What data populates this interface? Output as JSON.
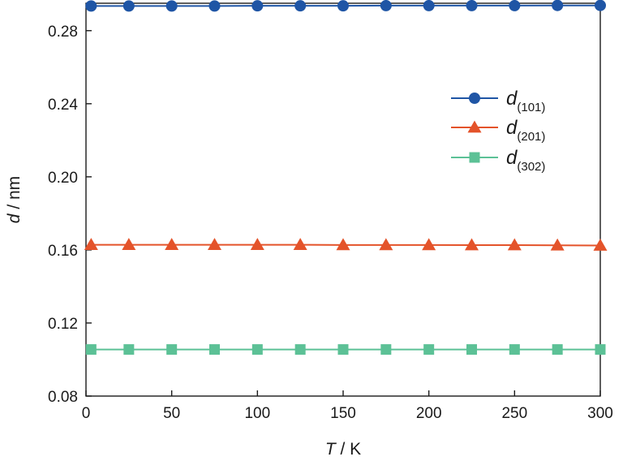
{
  "chart_data": {
    "type": "line",
    "xlabel": {
      "italic": "T",
      "rest": " / K"
    },
    "ylabel": {
      "italic": "d",
      "rest": " / nm"
    },
    "xlim": [
      0,
      300
    ],
    "ylim": [
      0.08,
      0.295
    ],
    "xticks": [
      0,
      50,
      100,
      150,
      200,
      250,
      300
    ],
    "yticks": [
      0.08,
      0.12,
      0.16,
      0.2,
      0.24,
      0.28
    ],
    "xtick_labels": [
      "0",
      "50",
      "100",
      "150",
      "200",
      "250",
      "300"
    ],
    "ytick_labels": [
      "0.08",
      "0.12",
      "0.16",
      "0.20",
      "0.24",
      "0.28"
    ],
    "grid": false,
    "legend_position": "top-right",
    "x": [
      3,
      25,
      50,
      75,
      100,
      125,
      150,
      175,
      200,
      225,
      250,
      275,
      300
    ],
    "series": [
      {
        "name": "d",
        "name_sub": "(101)",
        "marker": "circle",
        "color": "#1f55a5",
        "values": [
          0.2935,
          0.2935,
          0.2935,
          0.2935,
          0.2936,
          0.2936,
          0.2936,
          0.2937,
          0.2937,
          0.2937,
          0.2937,
          0.2938,
          0.2938
        ]
      },
      {
        "name": "d",
        "name_sub": "(201)",
        "marker": "triangle",
        "color": "#e4532a",
        "values": [
          0.1628,
          0.1628,
          0.1628,
          0.1628,
          0.1628,
          0.1628,
          0.1627,
          0.1627,
          0.1627,
          0.1626,
          0.1626,
          0.1625,
          0.1624
        ]
      },
      {
        "name": "d",
        "name_sub": "(302)",
        "marker": "square",
        "color": "#5cc196",
        "values": [
          0.1055,
          0.1055,
          0.1055,
          0.1055,
          0.1055,
          0.1055,
          0.1055,
          0.1055,
          0.1055,
          0.1055,
          0.1055,
          0.1055,
          0.1055
        ]
      }
    ]
  }
}
